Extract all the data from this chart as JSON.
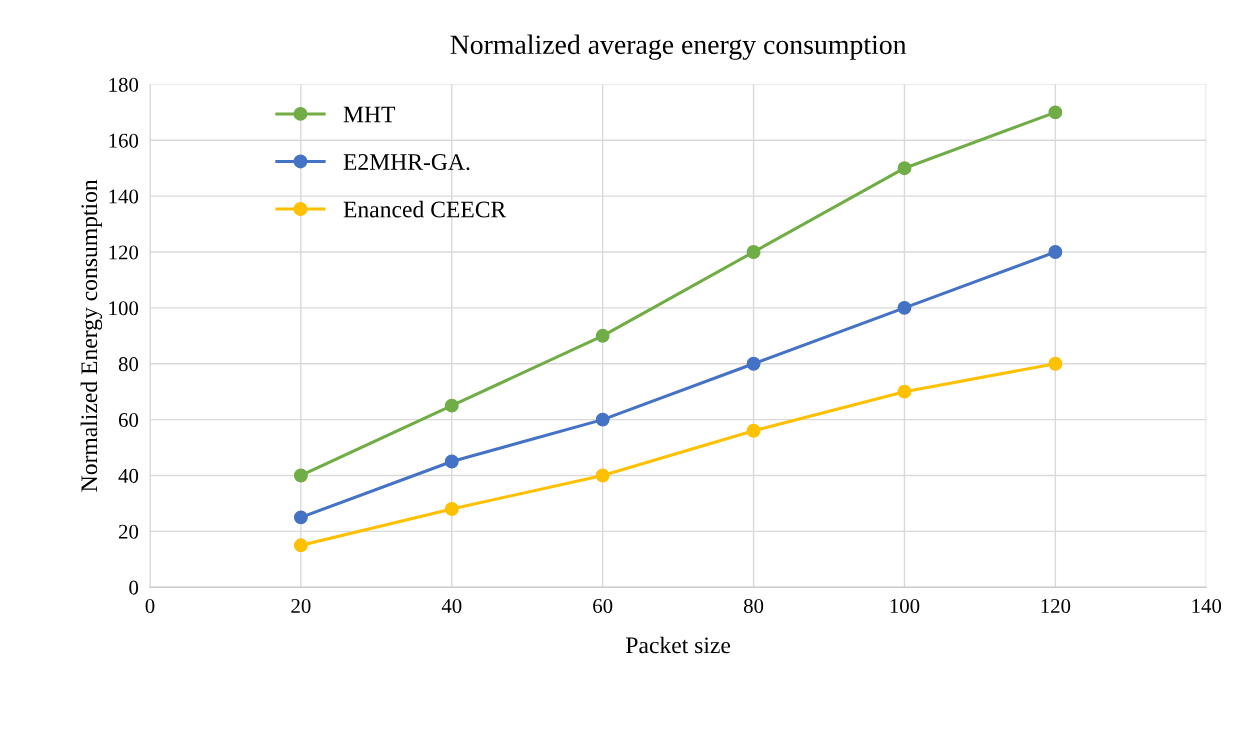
{
  "chart_data": {
    "type": "line",
    "title": "Normalized average energy consumption",
    "xlabel": "Packet size",
    "ylabel": "Normalized Energy consumption",
    "x": [
      20,
      40,
      60,
      80,
      100,
      120
    ],
    "series": [
      {
        "name": "MHT",
        "color": "#70ad47",
        "values": [
          40,
          65,
          90,
          120,
          150,
          170
        ]
      },
      {
        "name": "E2MHR-GA.",
        "color": "#4472c4",
        "values": [
          25,
          45,
          60,
          80,
          100,
          120
        ]
      },
      {
        "name": "Enanced CEECR",
        "color": "#ffc000",
        "values": [
          15,
          28,
          40,
          56,
          70,
          80
        ]
      }
    ],
    "xlim": [
      0,
      140
    ],
    "xticks": [
      0,
      20,
      40,
      60,
      80,
      100,
      120,
      140
    ],
    "ylim": [
      0,
      180
    ],
    "yticks": [
      0,
      20,
      40,
      60,
      80,
      100,
      120,
      140,
      160,
      180
    ],
    "grid": true,
    "legend": "top left",
    "marker": "circle",
    "line_style": "solid"
  }
}
